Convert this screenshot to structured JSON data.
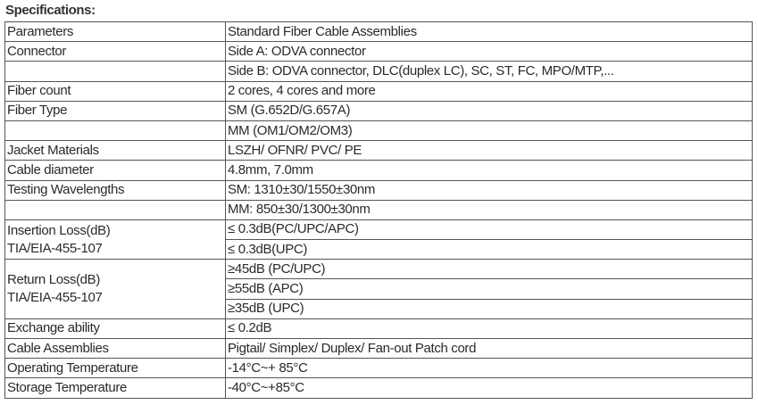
{
  "title": "Specifications:",
  "rows": [
    {
      "param": "Parameters",
      "value": "Standard Fiber Cable Assemblies"
    },
    {
      "param": "Connector",
      "value": "Side A: ODVA connector"
    },
    {
      "param": "",
      "value": "Side B: ODVA connector, DLC(duplex LC), SC, ST, FC, MPO/MTP,..."
    },
    {
      "param": "Fiber count",
      "value": "2 cores, 4 cores and more"
    },
    {
      "param": "Fiber Type",
      "value": "SM (G.652D/G.657A)"
    },
    {
      "param": "",
      "value": "MM (OM1/OM2/OM3)"
    },
    {
      "param": "Jacket Materials",
      "value": "LSZH/ OFNR/ PVC/ PE"
    },
    {
      "param": "Cable diameter",
      "value": "4.8mm, 7.0mm"
    },
    {
      "param": "Testing Wavelengths",
      "value": "SM: 1310±30/1550±30nm"
    },
    {
      "param": "",
      "value": "MM: 850±30/1300±30nm"
    }
  ],
  "insertion_loss": {
    "param_line1": "Insertion Loss(dB)",
    "param_line2": "TIA/EIA-455-107",
    "values": [
      "≤ 0.3dB(PC/UPC/APC)",
      "≤ 0.3dB(UPC)"
    ]
  },
  "return_loss": {
    "param_line1": "Return Loss(dB)",
    "param_line2": "TIA/EIA-455-107",
    "values": [
      "≥45dB (PC/UPC)",
      "≥55dB (APC)",
      "≥35dB (UPC)"
    ]
  },
  "rows2": [
    {
      "param": "Exchange ability",
      "value": "≤ 0.2dB"
    },
    {
      "param": "Cable Assemblies",
      "value": "Pigtail/ Simplex/ Duplex/ Fan-out Patch cord"
    },
    {
      "param": "Operating Temperature",
      "value": "-14°C~+ 85°C"
    },
    {
      "param": "Storage Temperature",
      "value": "-40°C~+85°C"
    }
  ]
}
